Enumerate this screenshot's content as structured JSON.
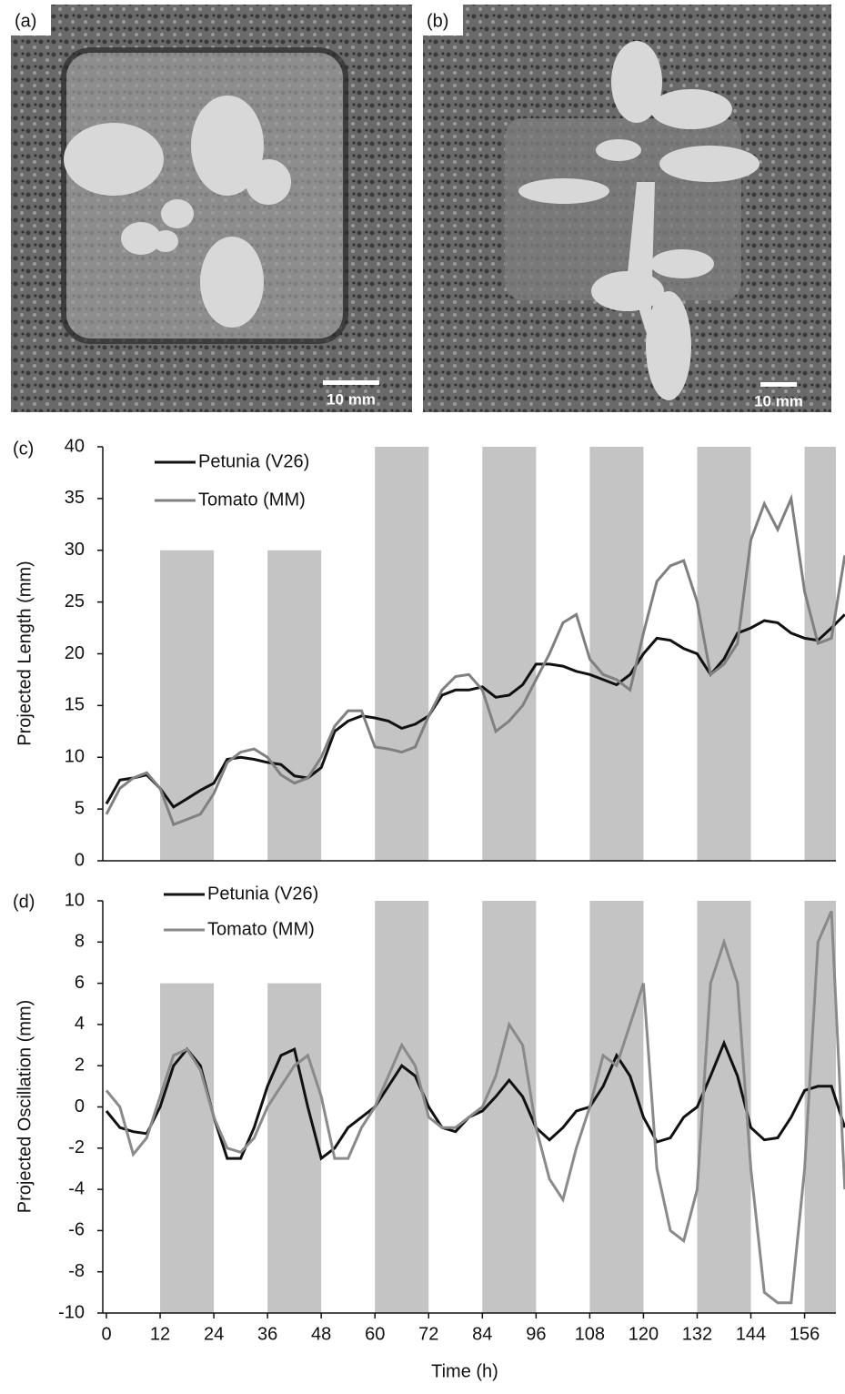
{
  "photos": [
    {
      "label": "(a)",
      "scale_bar": "10 mm"
    },
    {
      "label": "(b)",
      "scale_bar": "10 mm"
    }
  ],
  "chart_data": [
    {
      "type": "line",
      "panel": "(c)",
      "ylabel": "Projected Length (mm)",
      "xlim": [
        0,
        163
      ],
      "ylim": [
        0,
        40
      ],
      "yticks": [
        0,
        5,
        10,
        15,
        20,
        25,
        30,
        35,
        40
      ],
      "shaded": [
        [
          12,
          24,
          30
        ],
        [
          36,
          48,
          30
        ],
        [
          60,
          72,
          40
        ],
        [
          84,
          96,
          40
        ],
        [
          108,
          120,
          40
        ],
        [
          132,
          144,
          40
        ],
        [
          156,
          168,
          40
        ]
      ],
      "x": [
        0,
        3,
        6,
        9,
        12,
        15,
        18,
        21,
        24,
        27,
        30,
        33,
        36,
        39,
        42,
        45,
        48,
        51,
        54,
        57,
        60,
        63,
        66,
        69,
        72,
        75,
        78,
        81,
        84,
        87,
        90,
        93,
        96,
        99,
        102,
        105,
        108,
        111,
        114,
        117,
        120,
        123,
        126,
        129,
        132,
        135,
        138,
        141,
        144,
        147,
        150,
        153,
        156,
        159,
        162,
        165
      ],
      "series": [
        {
          "name": "Petunia (V26)",
          "color": "#111111",
          "values": [
            5.5,
            7.8,
            8,
            8.3,
            7,
            5.2,
            6,
            6.8,
            7.5,
            9.8,
            10,
            9.8,
            9.5,
            9.3,
            8.2,
            8,
            9,
            12.5,
            13.5,
            14,
            13.8,
            13.5,
            12.8,
            13.2,
            14,
            16,
            16.5,
            16.5,
            16.8,
            15.8,
            16,
            17,
            19,
            19,
            18.8,
            18.3,
            18,
            17.5,
            17,
            18,
            20,
            21.5,
            21.3,
            20.5,
            20,
            18,
            19.5,
            22,
            22.5,
            23.2,
            23,
            22,
            21.5,
            21.3,
            22.5,
            23.8
          ]
        },
        {
          "name": "Tomato (MM)",
          "color": "#808080",
          "values": [
            4.5,
            7,
            8,
            8.5,
            7,
            3.5,
            4,
            4.5,
            6.5,
            9.5,
            10.5,
            10.8,
            10,
            8.3,
            7.5,
            8,
            10,
            13,
            14.5,
            14.5,
            11,
            10.8,
            10.5,
            11,
            14,
            16.5,
            17.8,
            18,
            16.5,
            12.5,
            13.5,
            15,
            17.5,
            20,
            23,
            23.8,
            19.5,
            18,
            17.5,
            16.5,
            22,
            27,
            28.5,
            29,
            25,
            18,
            19,
            21,
            31,
            34.5,
            32,
            35,
            26,
            21,
            21.5,
            29.5
          ]
        }
      ]
    },
    {
      "type": "line",
      "panel": "(d)",
      "ylabel": "Projected Oscillation (mm)",
      "xlabel": "Time (h)",
      "xlim": [
        0,
        163
      ],
      "xticks": [
        0,
        12,
        24,
        36,
        48,
        60,
        72,
        84,
        96,
        108,
        120,
        132,
        144,
        156
      ],
      "ylim": [
        -10,
        10
      ],
      "yticks": [
        -10,
        -8,
        -6,
        -4,
        -2,
        0,
        2,
        4,
        6,
        8,
        10
      ],
      "shaded": [
        [
          12,
          24,
          6
        ],
        [
          36,
          48,
          6
        ],
        [
          60,
          72,
          10
        ],
        [
          84,
          96,
          10
        ],
        [
          108,
          120,
          10
        ],
        [
          132,
          144,
          10
        ],
        [
          156,
          168,
          10
        ]
      ],
      "x": [
        0,
        3,
        6,
        9,
        12,
        15,
        18,
        21,
        24,
        27,
        30,
        33,
        36,
        39,
        42,
        45,
        48,
        51,
        54,
        57,
        60,
        63,
        66,
        69,
        72,
        75,
        78,
        81,
        84,
        87,
        90,
        93,
        96,
        99,
        102,
        105,
        108,
        111,
        114,
        117,
        120,
        123,
        126,
        129,
        132,
        135,
        138,
        141,
        144,
        147,
        150,
        153,
        156,
        159,
        162,
        165
      ],
      "series": [
        {
          "name": "Petunia (V26)",
          "color": "#111111",
          "values": [
            -0.2,
            -1,
            -1.2,
            -1.3,
            0,
            2,
            2.8,
            2,
            -0.5,
            -2.5,
            -2.5,
            -1,
            1,
            2.5,
            2.8,
            0,
            -2.5,
            -2,
            -1,
            -0.5,
            0,
            1,
            2,
            1.5,
            0,
            -1,
            -1.2,
            -0.5,
            -0.2,
            0.5,
            1.3,
            0.5,
            -1,
            -1.6,
            -1,
            -0.2,
            0,
            1,
            2.5,
            1.5,
            -0.5,
            -1.7,
            -1.5,
            -0.5,
            0,
            1.5,
            3.1,
            1.5,
            -1,
            -1.6,
            -1.5,
            -0.5,
            0.8,
            1,
            1,
            -1
          ]
        },
        {
          "name": "Tomato (MM)",
          "color": "#8a8a8a",
          "values": [
            0.8,
            0,
            -2.3,
            -1.5,
            0.5,
            2.5,
            2.8,
            1.8,
            -0.5,
            -2,
            -2.2,
            -1.5,
            0,
            1,
            2,
            2.5,
            0.5,
            -2.5,
            -2.5,
            -1,
            0,
            1.5,
            3,
            2,
            -0.5,
            -1,
            -1,
            -0.5,
            0,
            1.5,
            4,
            3,
            -1,
            -3.5,
            -4.5,
            -2,
            0,
            2.5,
            2,
            4,
            6,
            -3,
            -6,
            -6.5,
            -4,
            6,
            8,
            6,
            -3,
            -9,
            -9.5,
            -9.5,
            -3,
            8,
            9.5,
            -4
          ]
        }
      ]
    }
  ]
}
